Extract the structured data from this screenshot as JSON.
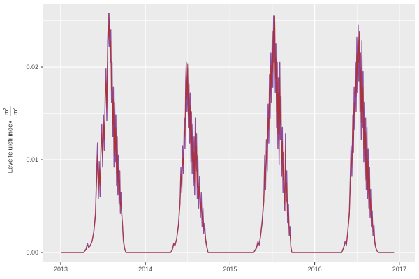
{
  "colors": {
    "background": "#ffffff",
    "panel": "#ebebeb",
    "grid_major": "#ffffff",
    "grid_minor": "#f7f7f7",
    "axis_text": "#4d4d4d",
    "tick_mark": "#333333",
    "series_purple": "#8f4d9d",
    "series_red": "#aa3339"
  },
  "chart_data": {
    "type": "line",
    "title": "",
    "x_axis": {
      "ticks": [
        2013,
        2014,
        2015,
        2016,
        2017
      ],
      "tick_labels": [
        "2013",
        "2014",
        "2015",
        "2016",
        "2017"
      ],
      "minor_ticks": [
        2013.5,
        2014.5,
        2015.5,
        2016.5
      ],
      "range": [
        2012.794,
        2017.183
      ]
    },
    "y_axis": {
      "title": "Levélfelületi index",
      "unit_numerator": "m²",
      "unit_denominator": "m²",
      "ticks": [
        0.0,
        0.01,
        0.02
      ],
      "tick_labels": [
        "0.00",
        "0.01",
        "0.02"
      ],
      "minor_ticks": [
        0.005,
        0.015,
        0.025
      ],
      "range": [
        -0.00105,
        0.02677
      ]
    },
    "grid": true,
    "legend": "none",
    "series": [
      {
        "name": "purple",
        "color": "#8f4d9d",
        "width": 1.4
      },
      {
        "name": "dark-red",
        "color": "#aa3339",
        "width": 1.0
      }
    ],
    "points": [
      [
        2013.003,
        0,
        0
      ],
      [
        2013.27,
        0,
        0
      ],
      [
        2013.3,
        0.0004,
        0.0003
      ],
      [
        2013.315,
        0.001,
        0.0008
      ],
      [
        2013.33,
        0.0005,
        0.0006
      ],
      [
        2013.35,
        0.0008,
        0.0007
      ],
      [
        2013.37,
        0.0012,
        0.0012
      ],
      [
        2013.39,
        0.0022,
        0.002
      ],
      [
        2013.41,
        0.0042,
        0.0038
      ],
      [
        2013.425,
        0.009,
        0.0078
      ],
      [
        2013.435,
        0.0118,
        0.0105
      ],
      [
        2013.445,
        0.0058,
        0.0066
      ],
      [
        2013.455,
        0.0098,
        0.009
      ],
      [
        2013.465,
        0.006,
        0.0072
      ],
      [
        2013.475,
        0.0112,
        0.0105
      ],
      [
        2013.485,
        0.0138,
        0.0128
      ],
      [
        2013.495,
        0.0092,
        0.0102
      ],
      [
        2013.505,
        0.0148,
        0.014
      ],
      [
        2013.515,
        0.011,
        0.0122
      ],
      [
        2013.525,
        0.0168,
        0.016
      ],
      [
        2013.535,
        0.0198,
        0.0185
      ],
      [
        2013.545,
        0.0142,
        0.0155
      ],
      [
        2013.555,
        0.0228,
        0.0215
      ],
      [
        2013.565,
        0.0258,
        0.0245
      ],
      [
        2013.572,
        0.0222,
        0.0232
      ],
      [
        2013.578,
        0.0252,
        0.0258
      ],
      [
        2013.585,
        0.0205,
        0.0215
      ],
      [
        2013.592,
        0.024,
        0.0228
      ],
      [
        2013.6,
        0.0162,
        0.0175
      ],
      [
        2013.607,
        0.0205,
        0.0192
      ],
      [
        2013.615,
        0.0125,
        0.0138
      ],
      [
        2013.622,
        0.0178,
        0.0165
      ],
      [
        2013.63,
        0.0092,
        0.0105
      ],
      [
        2013.638,
        0.0162,
        0.015
      ],
      [
        2013.645,
        0.0098,
        0.011
      ],
      [
        2013.652,
        0.0148,
        0.0135
      ],
      [
        2013.66,
        0.0072,
        0.0085
      ],
      [
        2013.668,
        0.0125,
        0.0112
      ],
      [
        2013.675,
        0.0062,
        0.0075
      ],
      [
        2013.682,
        0.0105,
        0.0092
      ],
      [
        2013.69,
        0.0052,
        0.0062
      ],
      [
        2013.698,
        0.0088,
        0.0078
      ],
      [
        2013.705,
        0.0042,
        0.005
      ],
      [
        2013.712,
        0.0065,
        0.0055
      ],
      [
        2013.72,
        0.0045,
        0.004
      ],
      [
        2013.73,
        0.0028,
        0.0032
      ],
      [
        2013.74,
        0.0012,
        0.0015
      ],
      [
        2013.755,
        0.0004,
        0.0005
      ],
      [
        2013.77,
        0,
        0
      ],
      [
        2014.3,
        0,
        0
      ],
      [
        2014.32,
        0.0004,
        0.0003
      ],
      [
        2014.335,
        0.001,
        0.0009
      ],
      [
        2014.35,
        0.0007,
        0.0008
      ],
      [
        2014.37,
        0.0015,
        0.0014
      ],
      [
        2014.39,
        0.003,
        0.0028
      ],
      [
        2014.41,
        0.0058,
        0.0052
      ],
      [
        2014.42,
        0.0092,
        0.0085
      ],
      [
        2014.43,
        0.0065,
        0.0072
      ],
      [
        2014.44,
        0.0115,
        0.0102
      ],
      [
        2014.45,
        0.0085,
        0.0095
      ],
      [
        2014.46,
        0.0145,
        0.0132
      ],
      [
        2014.468,
        0.0112,
        0.0125
      ],
      [
        2014.476,
        0.0185,
        0.0172
      ],
      [
        2014.484,
        0.0205,
        0.0195
      ],
      [
        2014.492,
        0.0152,
        0.0165
      ],
      [
        2014.5,
        0.0198,
        0.0203
      ],
      [
        2014.508,
        0.0135,
        0.0148
      ],
      [
        2014.515,
        0.0182,
        0.017
      ],
      [
        2014.523,
        0.0118,
        0.0132
      ],
      [
        2014.53,
        0.0172,
        0.0158
      ],
      [
        2014.538,
        0.0098,
        0.0112
      ],
      [
        2014.545,
        0.0152,
        0.0138
      ],
      [
        2014.553,
        0.0085,
        0.0098
      ],
      [
        2014.56,
        0.0138,
        0.0125
      ],
      [
        2014.568,
        0.0072,
        0.0085
      ],
      [
        2014.575,
        0.0125,
        0.0108
      ],
      [
        2014.583,
        0.0062,
        0.0075
      ],
      [
        2014.59,
        0.0145,
        0.013
      ],
      [
        2014.598,
        0.0088,
        0.01
      ],
      [
        2014.605,
        0.0128,
        0.0115
      ],
      [
        2014.613,
        0.0058,
        0.007
      ],
      [
        2014.62,
        0.0105,
        0.0092
      ],
      [
        2014.63,
        0.0048,
        0.0058
      ],
      [
        2014.64,
        0.0082,
        0.0072
      ],
      [
        2014.65,
        0.0038,
        0.0045
      ],
      [
        2014.66,
        0.0065,
        0.0055
      ],
      [
        2014.67,
        0.0028,
        0.0035
      ],
      [
        2014.68,
        0.0048,
        0.004
      ],
      [
        2014.69,
        0.002,
        0.0025
      ],
      [
        2014.7,
        0.0032,
        0.0026
      ],
      [
        2014.712,
        0.0012,
        0.0015
      ],
      [
        2014.725,
        0.0006,
        0.0008
      ],
      [
        2014.74,
        0,
        0
      ],
      [
        2015.28,
        0,
        0
      ],
      [
        2015.31,
        0.0005,
        0.0004
      ],
      [
        2015.33,
        0.0012,
        0.001
      ],
      [
        2015.345,
        0.0008,
        0.0009
      ],
      [
        2015.36,
        0.0018,
        0.0016
      ],
      [
        2015.38,
        0.0035,
        0.0032
      ],
      [
        2015.4,
        0.0062,
        0.0055
      ],
      [
        2015.41,
        0.0105,
        0.0092
      ],
      [
        2015.42,
        0.0068,
        0.0078
      ],
      [
        2015.43,
        0.0122,
        0.011
      ],
      [
        2015.44,
        0.0088,
        0.0098
      ],
      [
        2015.45,
        0.016,
        0.0145
      ],
      [
        2015.458,
        0.0118,
        0.0132
      ],
      [
        2015.466,
        0.0192,
        0.0178
      ],
      [
        2015.474,
        0.0145,
        0.0158
      ],
      [
        2015.482,
        0.0215,
        0.0202
      ],
      [
        2015.49,
        0.0162,
        0.0178
      ],
      [
        2015.498,
        0.0238,
        0.0222
      ],
      [
        2015.506,
        0.0178,
        0.0195
      ],
      [
        2015.514,
        0.0255,
        0.0242
      ],
      [
        2015.521,
        0.0205,
        0.0222
      ],
      [
        2015.528,
        0.0248,
        0.0255
      ],
      [
        2015.535,
        0.0172,
        0.0188
      ],
      [
        2015.542,
        0.0225,
        0.021
      ],
      [
        2015.55,
        0.0135,
        0.0152
      ],
      [
        2015.558,
        0.0205,
        0.019
      ],
      [
        2015.565,
        0.0112,
        0.0128
      ],
      [
        2015.572,
        0.0188,
        0.0172
      ],
      [
        2015.58,
        0.0095,
        0.0108
      ],
      [
        2015.588,
        0.0205,
        0.0188
      ],
      [
        2015.595,
        0.0122,
        0.0138
      ],
      [
        2015.602,
        0.0168,
        0.0152
      ],
      [
        2015.61,
        0.0082,
        0.0095
      ],
      [
        2015.618,
        0.0135,
        0.012
      ],
      [
        2015.625,
        0.0065,
        0.0078
      ],
      [
        2015.632,
        0.0108,
        0.0095
      ],
      [
        2015.64,
        0.0052,
        0.0062
      ],
      [
        2015.648,
        0.0045,
        0.0052
      ],
      [
        2015.655,
        0.0128,
        0.0112
      ],
      [
        2015.663,
        0.0055,
        0.0065
      ],
      [
        2015.67,
        0.0088,
        0.0075
      ],
      [
        2015.68,
        0.0032,
        0.004
      ],
      [
        2015.69,
        0.0052,
        0.0042
      ],
      [
        2015.7,
        0.0018,
        0.0022
      ],
      [
        2015.708,
        0.0028,
        0.002
      ],
      [
        2015.718,
        0.0006,
        0.0008
      ],
      [
        2015.73,
        0,
        0
      ],
      [
        2016.32,
        0,
        0
      ],
      [
        2016.34,
        0.0005,
        0.0004
      ],
      [
        2016.36,
        0.0012,
        0.001
      ],
      [
        2016.375,
        0.0008,
        0.0009
      ],
      [
        2016.39,
        0.0022,
        0.002
      ],
      [
        2016.41,
        0.0045,
        0.004
      ],
      [
        2016.42,
        0.0078,
        0.0068
      ],
      [
        2016.43,
        0.0115,
        0.0102
      ],
      [
        2016.44,
        0.0082,
        0.0092
      ],
      [
        2016.45,
        0.0148,
        0.0135
      ],
      [
        2016.458,
        0.0108,
        0.0122
      ],
      [
        2016.466,
        0.0178,
        0.0162
      ],
      [
        2016.474,
        0.0132,
        0.0148
      ],
      [
        2016.482,
        0.0205,
        0.019
      ],
      [
        2016.49,
        0.0152,
        0.0168
      ],
      [
        2016.498,
        0.0232,
        0.0215
      ],
      [
        2016.506,
        0.0172,
        0.019
      ],
      [
        2016.514,
        0.0245,
        0.023
      ],
      [
        2016.521,
        0.0185,
        0.0205
      ],
      [
        2016.528,
        0.0228,
        0.0238
      ],
      [
        2016.535,
        0.0152,
        0.0172
      ],
      [
        2016.542,
        0.0215,
        0.0198
      ],
      [
        2016.55,
        0.0122,
        0.014
      ],
      [
        2016.558,
        0.0228,
        0.0212
      ],
      [
        2016.565,
        0.0135,
        0.0152
      ],
      [
        2016.572,
        0.0195,
        0.0178
      ],
      [
        2016.58,
        0.0098,
        0.0112
      ],
      [
        2016.588,
        0.0162,
        0.0145
      ],
      [
        2016.595,
        0.0078,
        0.0092
      ],
      [
        2016.602,
        0.0145,
        0.013
      ],
      [
        2016.61,
        0.0068,
        0.008
      ],
      [
        2016.618,
        0.0135,
        0.012
      ],
      [
        2016.625,
        0.0058,
        0.0068
      ],
      [
        2016.632,
        0.0112,
        0.0098
      ],
      [
        2016.64,
        0.0048,
        0.0058
      ],
      [
        2016.648,
        0.0092,
        0.008
      ],
      [
        2016.655,
        0.0038,
        0.0046
      ],
      [
        2016.662,
        0.0068,
        0.0058
      ],
      [
        2016.67,
        0.0028,
        0.0034
      ],
      [
        2016.68,
        0.0045,
        0.0038
      ],
      [
        2016.69,
        0.0018,
        0.0022
      ],
      [
        2016.7,
        0.003,
        0.0024
      ],
      [
        2016.71,
        0.001,
        0.0013
      ],
      [
        2016.722,
        0.0005,
        0.0006
      ],
      [
        2016.735,
        0.0002,
        0.0002
      ],
      [
        2016.75,
        0,
        0
      ],
      [
        2016.938,
        0,
        0
      ]
    ]
  }
}
